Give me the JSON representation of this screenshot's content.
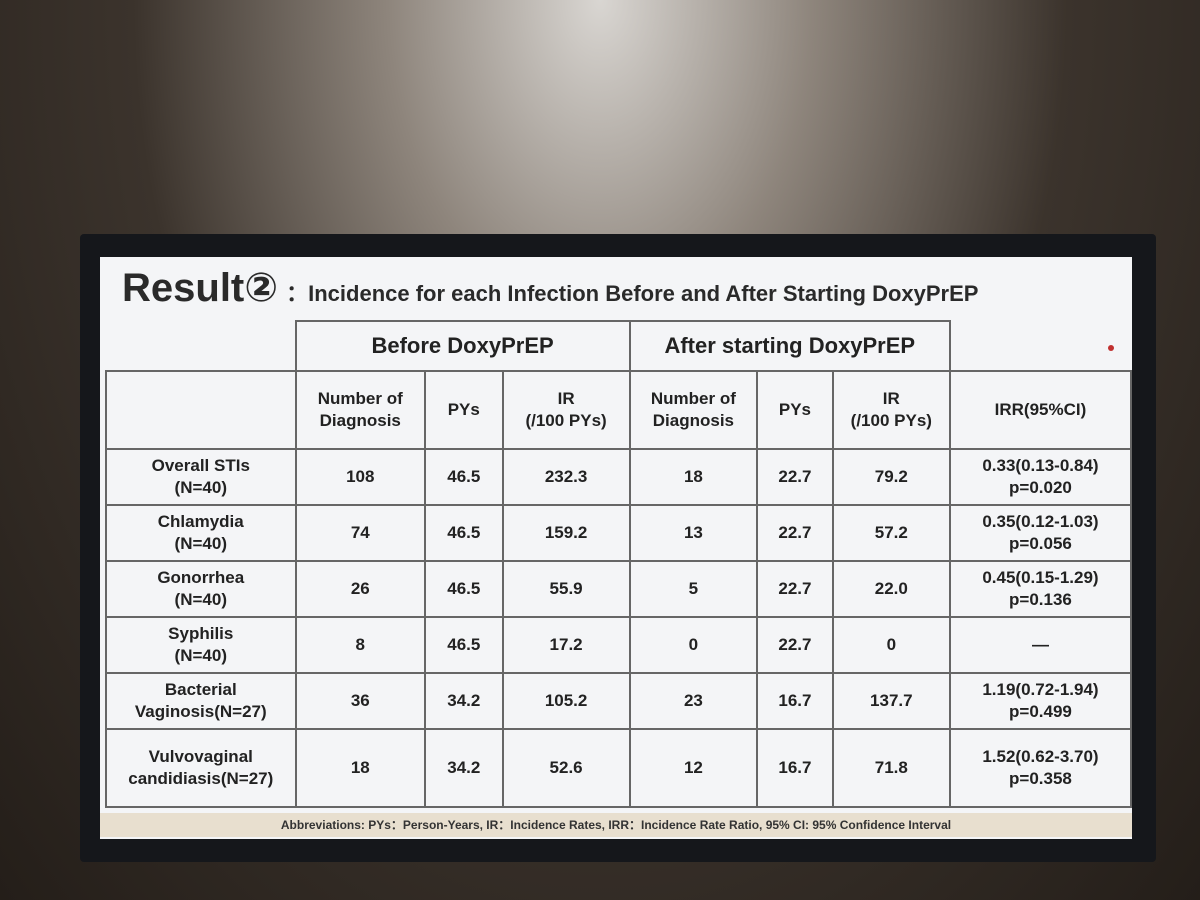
{
  "slide": {
    "title": "Result②",
    "subtitle": "：Incidence for each Infection Before and After Starting DoxyPrEP",
    "footer": "Abbreviations: PYs：Person-Years, IR：Incidence Rates, IRR：Incidence Rate Ratio, 95% CI: 95% Confidence Interval"
  },
  "table": {
    "group_headers": [
      "Before DoxyPrEP",
      "After starting DoxyPrEP"
    ],
    "columns": [
      "Number of\nDiagnosis",
      "PYs",
      "IR\n(/100 PYs)",
      "Number of\nDiagnosis",
      "PYs",
      "IR\n(/100 PYs)",
      "IRR(95%CI)"
    ],
    "rows": [
      [
        "Overall STIs\n(N=40)",
        "108",
        "46.5",
        "232.3",
        "18",
        "22.7",
        "79.2",
        "0.33(0.13-0.84)\np=0.020"
      ],
      [
        "Chlamydia\n(N=40)",
        "74",
        "46.5",
        "159.2",
        "13",
        "22.7",
        "57.2",
        "0.35(0.12-1.03)\np=0.056"
      ],
      [
        "Gonorrhea\n(N=40)",
        "26",
        "46.5",
        "55.9",
        "5",
        "22.7",
        "22.0",
        "0.45(0.15-1.29)\np=0.136"
      ],
      [
        "Syphilis\n(N=40)",
        "8",
        "46.5",
        "17.2",
        "0",
        "22.7",
        "0",
        "—"
      ],
      [
        "Bacterial\nVaginosis(N=27)",
        "36",
        "34.2",
        "105.2",
        "23",
        "16.7",
        "137.7",
        "1.19(0.72-1.94)\np=0.499"
      ],
      [
        "Vulvovaginal\ncandidiasis(N=27)",
        "18",
        "34.2",
        "52.6",
        "12",
        "16.7",
        "71.8",
        "1.52(0.62-3.70)\np=0.358"
      ]
    ]
  }
}
